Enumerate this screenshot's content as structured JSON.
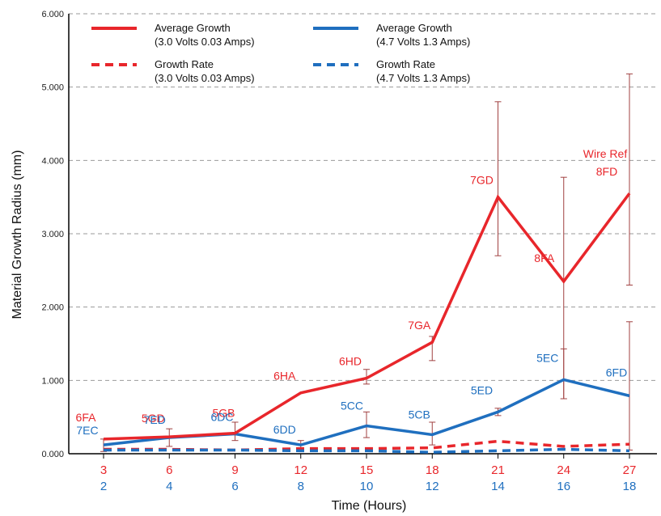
{
  "colors": {
    "red": "#e8262b",
    "blue": "#1f6fbf",
    "grid": "#999999",
    "errbar": "#a04040"
  },
  "chart_data": {
    "type": "line",
    "xlabel": "Time (Hours)",
    "ylabel": "Material Growth Radius (mm)",
    "ylim": [
      0,
      6
    ],
    "yticks": [
      "0.000",
      "1.000",
      "2.000",
      "3.000",
      "4.000",
      "5.000",
      "6.000"
    ],
    "x_ticks_red": [
      "3",
      "6",
      "9",
      "12",
      "15",
      "18",
      "21",
      "24",
      "27"
    ],
    "x_ticks_blue": [
      "2",
      "4",
      "6",
      "8",
      "10",
      "12",
      "14",
      "16",
      "18"
    ],
    "grid": "horizontal dashed",
    "legend": {
      "placement": "top-left",
      "items": [
        {
          "line1": "Average Growth",
          "line2": "(3.0 Volts 0.03 Amps)",
          "color": "#e8262b",
          "style": "solid"
        },
        {
          "line1": "Average Growth",
          "line2": "(4.7 Volts 1.3 Amps)",
          "color": "#1f6fbf",
          "style": "solid"
        },
        {
          "line1": "Growth Rate",
          "line2": "(3.0 Volts 0.03 Amps)",
          "color": "#e8262b",
          "style": "dashed"
        },
        {
          "line1": "Growth Rate",
          "line2": "(4.7 Volts 1.3 Amps)",
          "color": "#1f6fbf",
          "style": "dashed"
        }
      ]
    },
    "series": [
      {
        "key": "red_avg",
        "color": "#e8262b",
        "style": "solid",
        "values": [
          0.2,
          0.23,
          0.28,
          0.83,
          1.03,
          1.52,
          3.5,
          2.35,
          3.55
        ],
        "labels": [
          "6FA",
          "5GD",
          "5GB",
          "6HA",
          "6HD",
          "7GA",
          "7GD",
          "8FA",
          "8FD"
        ],
        "errors": [
          null,
          null,
          null,
          null,
          [
            0.95,
            1.15
          ],
          [
            1.27,
            1.6
          ],
          [
            2.7,
            4.8
          ],
          [
            0.75,
            3.77
          ],
          [
            2.3,
            5.18
          ]
        ]
      },
      {
        "key": "blue_avg",
        "color": "#1f6fbf",
        "style": "solid",
        "values": [
          0.12,
          0.22,
          0.27,
          0.12,
          0.38,
          0.26,
          0.57,
          1.01,
          0.79
        ],
        "labels": [
          "7EC",
          "7ED",
          "6DC",
          "6DD",
          "5CC",
          "5CB",
          "5ED",
          "5EC",
          "6FD"
        ],
        "errors": [
          [
            0.03,
            0.2
          ],
          [
            0.1,
            0.34
          ],
          [
            0.18,
            0.43
          ],
          [
            0.06,
            0.18
          ],
          [
            0.22,
            0.57
          ],
          [
            0.12,
            0.43
          ],
          [
            0.52,
            0.62
          ],
          [
            0.75,
            1.43
          ],
          [
            0.05,
            1.8
          ]
        ]
      },
      {
        "key": "red_rate",
        "color": "#e8262b",
        "style": "dashed",
        "values": [
          0.06,
          0.06,
          0.05,
          0.07,
          0.07,
          0.08,
          0.17,
          0.1,
          0.13
        ]
      },
      {
        "key": "blue_rate",
        "color": "#1f6fbf",
        "style": "dashed",
        "values": [
          0.05,
          0.05,
          0.05,
          0.04,
          0.04,
          0.02,
          0.04,
          0.06,
          0.04
        ]
      }
    ],
    "annotations": [
      {
        "text": "Wire Ref",
        "color": "#e8262b"
      }
    ]
  }
}
